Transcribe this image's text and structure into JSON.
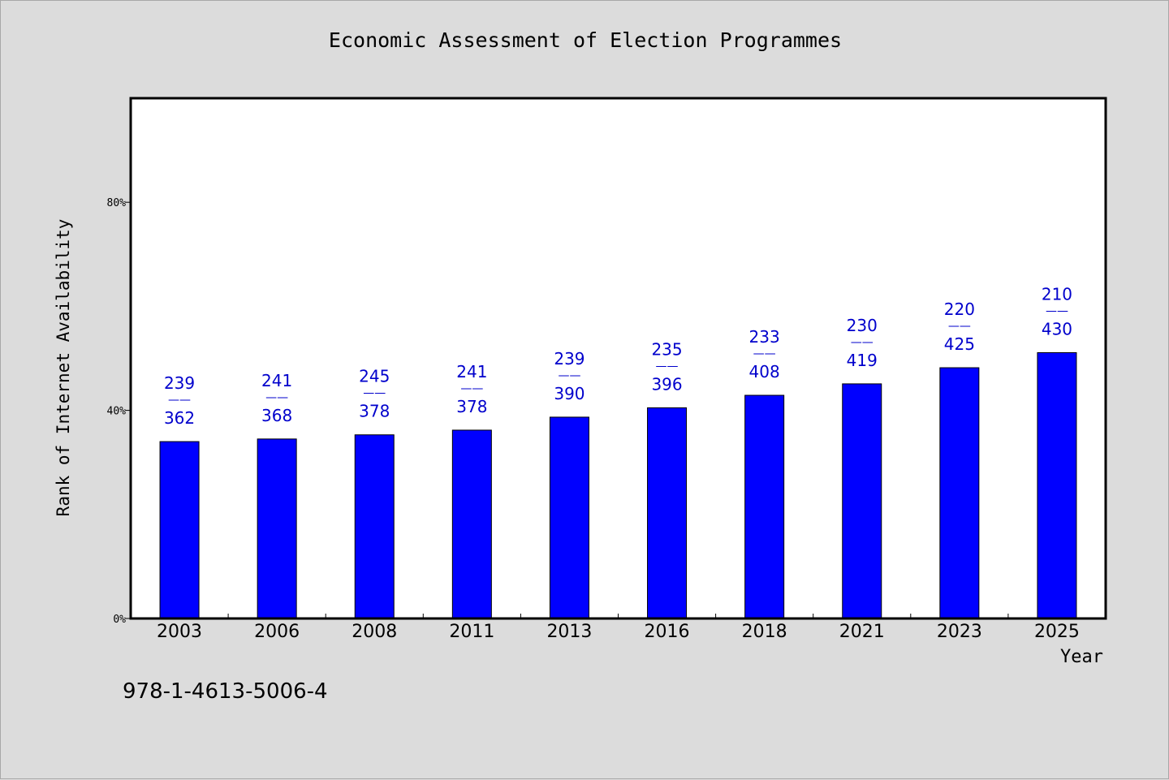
{
  "chart_data": {
    "type": "bar",
    "title": "Economic Assessment of Election Programmes",
    "xlabel": "Year",
    "ylabel": "Rank of Internet Availability",
    "categories": [
      "2003",
      "2006",
      "2008",
      "2011",
      "2013",
      "2016",
      "2018",
      "2021",
      "2023",
      "2025"
    ],
    "series": [
      {
        "values": [
          34,
          34.5,
          35.3,
          36.2,
          38.7,
          40.5,
          42.9,
          45.1,
          48.2,
          51.1
        ],
        "label_top": [
          "239",
          "241",
          "245",
          "241",
          "239",
          "235",
          "233",
          "230",
          "220",
          "210"
        ],
        "label_bottom": [
          "362",
          "368",
          "378",
          "378",
          "390",
          "396",
          "408",
          "419",
          "425",
          "430"
        ],
        "label_separator": "——"
      }
    ],
    "ylim": [
      0,
      100
    ],
    "yticks": [
      0,
      40,
      80
    ],
    "ytick_labels": [
      "0%",
      "40%",
      "80%"
    ],
    "grid": false,
    "legend": "none",
    "colors": {
      "bar": "#0000ff",
      "data_label": "#0000cc",
      "background": "#dcdcdc",
      "plot_bg": "#ffffff"
    }
  },
  "footnote": "978-1-4613-5006-4"
}
